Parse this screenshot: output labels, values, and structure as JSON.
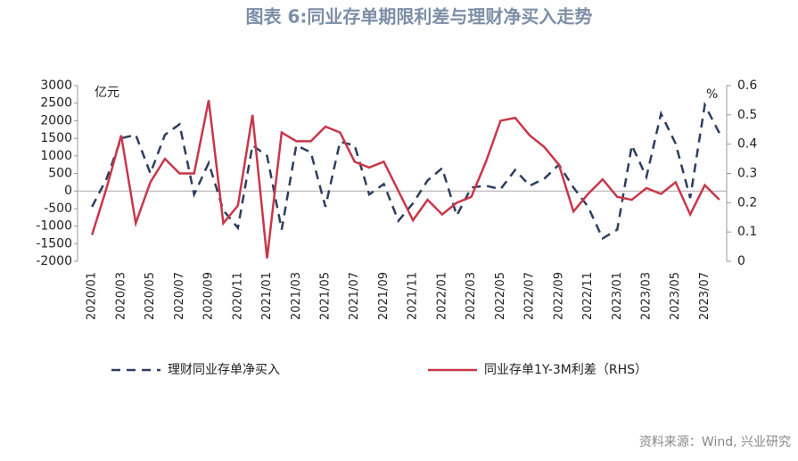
{
  "chart_data": {
    "type": "line",
    "title": "图表 6:同业存单期限利差与理财净买入走势",
    "y_unit": "亿元",
    "y2_unit": "%",
    "source": "资料来源：Wind, 兴业研究",
    "categories": [
      "2020/01",
      null,
      "2020/03",
      null,
      "2020/05",
      null,
      "2020/07",
      null,
      "2020/09",
      null,
      "2020/11",
      null,
      "2021/01",
      null,
      "2021/03",
      null,
      "2021/05",
      null,
      "2021/07",
      null,
      "2021/09",
      null,
      "2021/11",
      null,
      "2022/01",
      null,
      "2022/03",
      null,
      "2022/05",
      null,
      "2022/07",
      null,
      "2022/09",
      null,
      "2022/11",
      null,
      "2023/01",
      null,
      "2023/03",
      null,
      "2023/05",
      null,
      "2023/07",
      null
    ],
    "ylim": [
      -2000,
      3000
    ],
    "yticks": [
      -2000,
      -1500,
      -1000,
      -500,
      0,
      500,
      1000,
      1500,
      2000,
      2500,
      3000
    ],
    "y2lim": [
      0,
      0.6
    ],
    "y2ticks": [
      0,
      0.1,
      0.2,
      0.3,
      0.4,
      0.5,
      0.6
    ],
    "grid": false,
    "legend": "bottom",
    "series": [
      {
        "name": "理财同业存单净买入",
        "color": "#2d3e5e",
        "dash": true,
        "values": [
          -450,
          350,
          1500,
          1600,
          500,
          1600,
          1900,
          -100,
          800,
          -550,
          -1050,
          1300,
          1000,
          -1100,
          1300,
          1100,
          -450,
          1400,
          1300,
          -100,
          200,
          -850,
          -350,
          300,
          650,
          -700,
          100,
          150,
          50,
          600,
          150,
          350,
          750,
          100,
          -450,
          -1350,
          -1100,
          1300,
          400,
          2200,
          1350,
          -200,
          2450,
          1650
        ]
      },
      {
        "name": "同业存单1Y-3M利差（RHS）",
        "color": "#c8374a",
        "axis": "y2",
        "values": [
          0.09,
          0.25,
          0.43,
          0.13,
          0.27,
          0.35,
          0.3,
          0.3,
          0.55,
          0.13,
          0.19,
          0.5,
          0.01,
          0.44,
          0.41,
          0.41,
          0.46,
          0.44,
          0.34,
          0.32,
          0.34,
          0.24,
          0.14,
          0.21,
          0.16,
          0.2,
          0.22,
          0.34,
          0.48,
          0.49,
          0.43,
          0.39,
          0.33,
          0.17,
          0.23,
          0.28,
          0.22,
          0.21,
          0.25,
          0.23,
          0.27,
          0.16,
          0.26,
          0.21
        ]
      }
    ]
  }
}
